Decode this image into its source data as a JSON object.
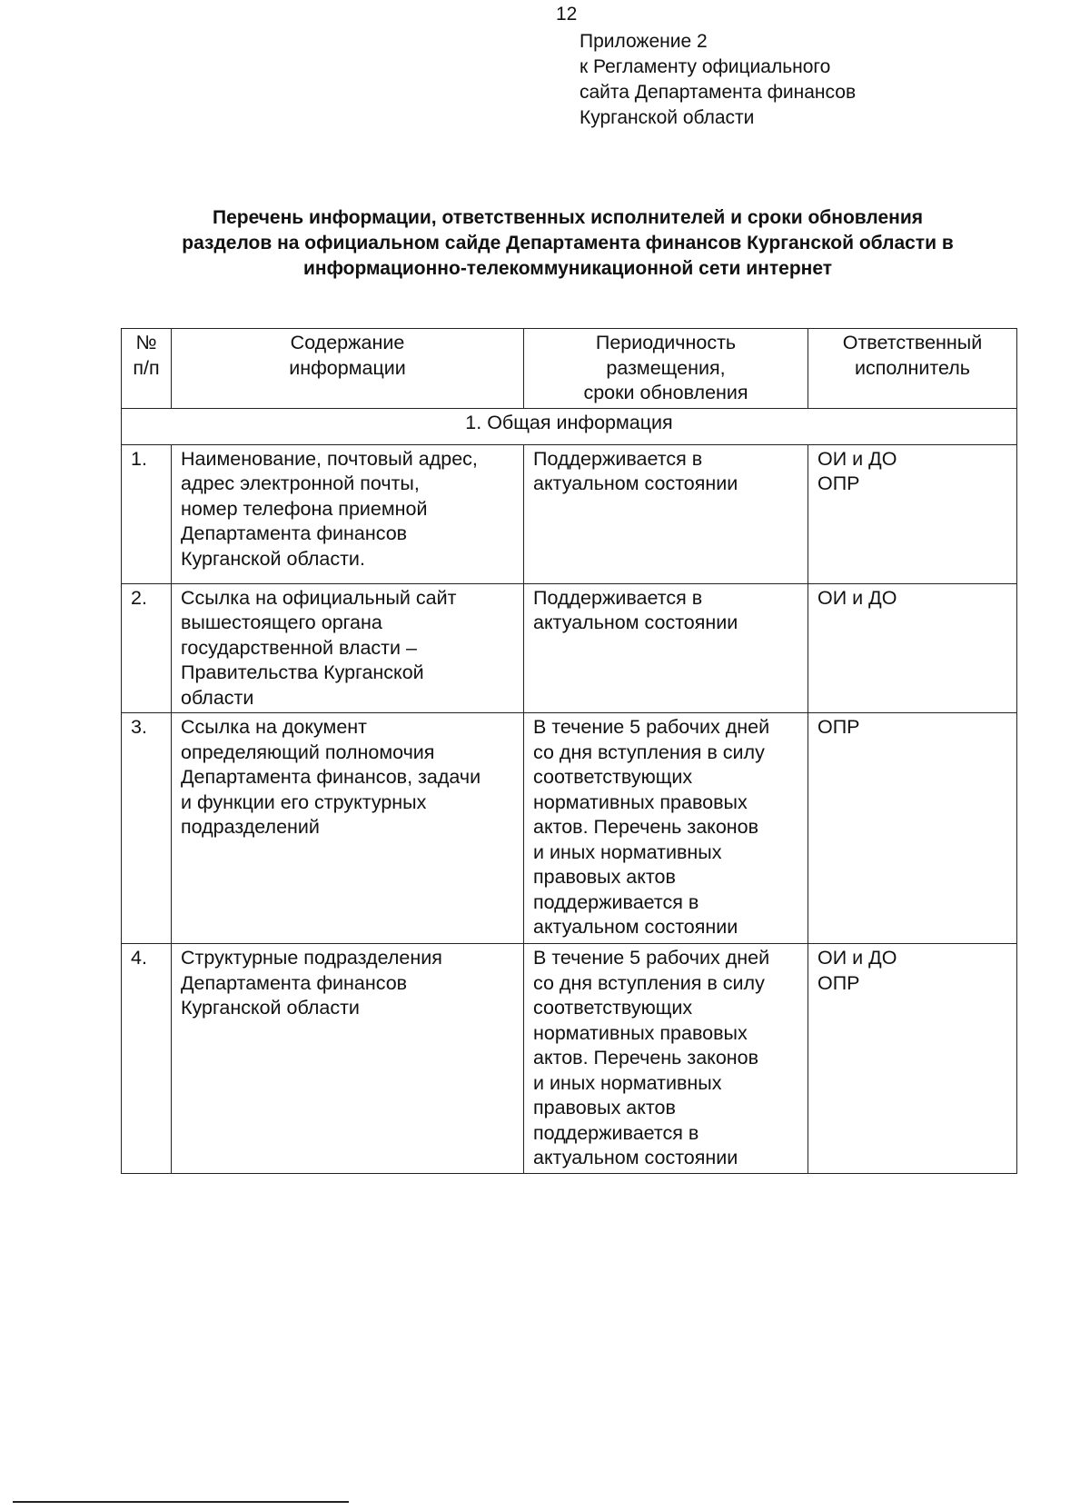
{
  "page_number": "12",
  "appendix": "Приложение 2\nк Регламенту официального\nсайта Департамента финансов\nКурганской области",
  "title": "Перечень информации, ответственных исполнителей и сроки обновления\nразделов на официальном сайде Департамента финансов Курганской области в\nинформационно-телекоммуникационной сети интернет",
  "table": {
    "headers": [
      "№\nп/п",
      "Содержание\nинформации",
      "Периодичность\nразмещения,\nсроки обновления",
      "Ответственный\nисполнитель"
    ],
    "section": "1. Общая информация",
    "rows": [
      {
        "num": "1.",
        "content": "Наименование, почтовый адрес,\nадрес электронной почты,\nномер телефона приемной\nДепартамента финансов\nКурганской области.",
        "period": "Поддерживается в\nактуальном состоянии",
        "responsible": "ОИ и ДО\nОПР"
      },
      {
        "num": "2.",
        "content": "Ссылка на официальный сайт\nвышестоящего органа\nгосударственной власти –\nПравительства Курганской\nобласти",
        "period": "Поддерживается в\nактуальном состоянии",
        "responsible": "ОИ и ДО"
      },
      {
        "num": "3.",
        "content": "Ссылка на документ\nопределяющий полномочия\nДепартамента финансов, задачи\nи функции его структурных\nподразделений",
        "period": "В течение 5 рабочих дней\nсо дня вступления в силу\nсоответствующих\nнормативных правовых\nактов. Перечень законов\nи иных нормативных\nправовых актов\nподдерживается в\nактуальном состоянии",
        "responsible": "ОПР"
      },
      {
        "num": "4.",
        "content": "Структурные подразделения\nДепартамента финансов\nКурганской области",
        "period": "В течение 5 рабочих дней\nсо дня вступления в силу\nсоответствующих\nнормативных правовых\nактов. Перечень законов\nи иных нормативных\nправовых актов\nподдерживается в\nактуальном состоянии",
        "responsible": "ОИ и ДО\nОПР"
      }
    ]
  }
}
